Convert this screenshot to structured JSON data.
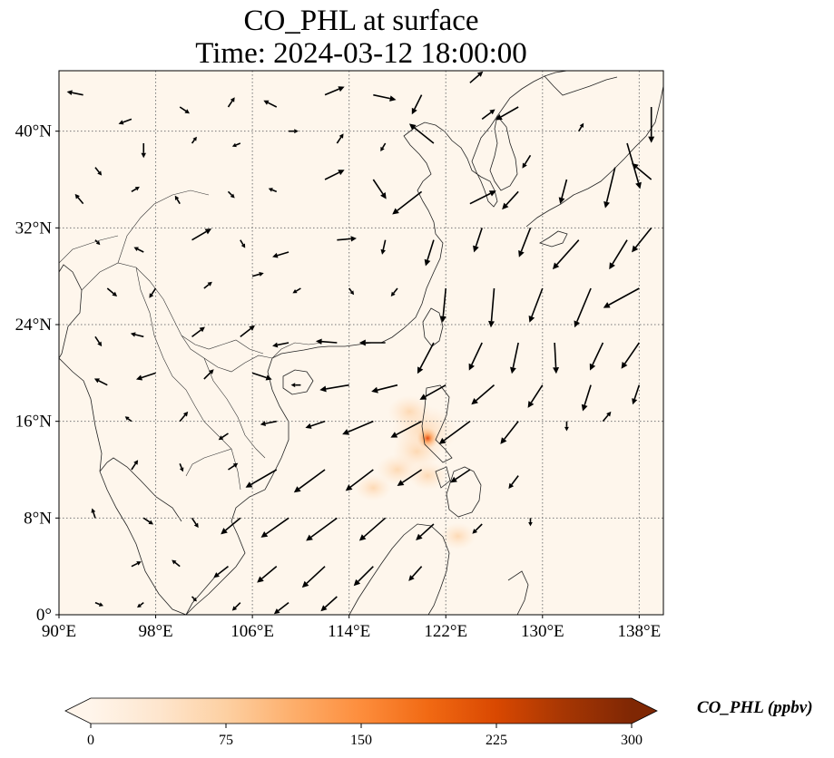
{
  "title": {
    "line1": "CO_PHL at surface",
    "line2": "Time: 2024-03-12 18:00:00"
  },
  "map": {
    "variable": "CO_PHL",
    "lon_range": [
      90,
      140
    ],
    "lat_range": [
      0,
      45
    ],
    "lon_ticks": [
      {
        "value": 90,
        "label": "90°E"
      },
      {
        "value": 98,
        "label": "98°E"
      },
      {
        "value": 106,
        "label": "106°E"
      },
      {
        "value": 114,
        "label": "114°E"
      },
      {
        "value": 122,
        "label": "122°E"
      },
      {
        "value": 130,
        "label": "130°E"
      },
      {
        "value": 138,
        "label": "138°E"
      }
    ],
    "lat_ticks": [
      {
        "value": 0,
        "label": "0°"
      },
      {
        "value": 8,
        "label": "8°N"
      },
      {
        "value": 16,
        "label": "16°N"
      },
      {
        "value": 24,
        "label": "24°N"
      },
      {
        "value": 32,
        "label": "32°N"
      },
      {
        "value": 40,
        "label": "40°N"
      }
    ],
    "gridlines": true,
    "background_color": "#fef6ec",
    "hotspot": {
      "lon": 120.5,
      "lat": 14.6,
      "value": 150
    },
    "plume": [
      {
        "lon": 120.2,
        "lat": 15.2,
        "value": 45
      },
      {
        "lon": 119.6,
        "lat": 13.5,
        "value": 25
      },
      {
        "lon": 118.0,
        "lat": 12.0,
        "value": 18
      },
      {
        "lon": 116.0,
        "lat": 10.5,
        "value": 12
      },
      {
        "lon": 120.5,
        "lat": 11.5,
        "value": 15
      },
      {
        "lon": 123.0,
        "lat": 6.5,
        "value": 12
      },
      {
        "lon": 119.0,
        "lat": 16.8,
        "value": 20
      }
    ]
  },
  "wind_field": [
    [
      92,
      43,
      -1,
      0.2
    ],
    [
      96,
      41,
      -0.8,
      -0.3
    ],
    [
      100,
      42,
      0.6,
      -0.4
    ],
    [
      104,
      42,
      0.4,
      0.6
    ],
    [
      108,
      42,
      -0.8,
      0.4
    ],
    [
      112,
      43,
      1.2,
      0.5
    ],
    [
      116,
      43,
      1.4,
      -0.3
    ],
    [
      120,
      43,
      -0.6,
      -1.2
    ],
    [
      124,
      44,
      0.8,
      0.7
    ],
    [
      128,
      42,
      -1.4,
      -0.8
    ],
    [
      93,
      37,
      0.4,
      -0.5
    ],
    [
      97,
      39,
      0,
      -0.9
    ],
    [
      101,
      39,
      0.3,
      0.4
    ],
    [
      105,
      39,
      -0.5,
      -0.2
    ],
    [
      109,
      40,
      0.6,
      0
    ],
    [
      113,
      39,
      0.4,
      0.6
    ],
    [
      117,
      39,
      -0.3,
      -0.5
    ],
    [
      121,
      39,
      -1.5,
      1.2
    ],
    [
      125,
      41,
      0.8,
      0.6
    ],
    [
      129,
      38,
      -0.5,
      -0.8
    ],
    [
      133,
      40,
      0.3,
      0.5
    ],
    [
      137,
      39,
      0.8,
      -2.8
    ],
    [
      139,
      42,
      0,
      -2.2
    ],
    [
      92,
      34,
      -0.5,
      0.6
    ],
    [
      96,
      35,
      0.5,
      0.3
    ],
    [
      100,
      34,
      -0.3,
      0.5
    ],
    [
      104,
      35,
      0.4,
      -0.4
    ],
    [
      108,
      35,
      -0.5,
      0.2
    ],
    [
      112,
      36,
      1.2,
      0.6
    ],
    [
      116,
      36,
      0.8,
      -1.2
    ],
    [
      120,
      35,
      -1.8,
      -1.4
    ],
    [
      124,
      34,
      1.6,
      0.8
    ],
    [
      128,
      35,
      -1,
      -1.1
    ],
    [
      132,
      36,
      -0.4,
      -1.5
    ],
    [
      136,
      37,
      -0.6,
      -2.5
    ],
    [
      139,
      36,
      -1.2,
      1
    ],
    [
      93,
      31,
      0.3,
      -0.3
    ],
    [
      97,
      30,
      -0.6,
      0.3
    ],
    [
      101,
      31,
      1.2,
      0.7
    ],
    [
      105,
      31,
      0.3,
      -0.5
    ],
    [
      109,
      30,
      -1,
      -0.3
    ],
    [
      113,
      31,
      1.2,
      0.1
    ],
    [
      117,
      31,
      -0.2,
      -0.9
    ],
    [
      121,
      31,
      -0.5,
      -1.6
    ],
    [
      125,
      32,
      -0.5,
      -1.5
    ],
    [
      129,
      32,
      -0.7,
      -1.8
    ],
    [
      133,
      31,
      -1.6,
      -1.8
    ],
    [
      137,
      31,
      -1.1,
      -1.8
    ],
    [
      139,
      32,
      -1.2,
      -1.5
    ],
    [
      94,
      27,
      0.6,
      -0.5
    ],
    [
      98,
      27,
      -0.4,
      -0.6
    ],
    [
      102,
      27,
      0.5,
      0.4
    ],
    [
      106,
      28,
      0.7,
      0.2
    ],
    [
      110,
      27,
      -0.5,
      -0.3
    ],
    [
      114,
      27,
      0.3,
      -0.4
    ],
    [
      118,
      27,
      -0.4,
      -0.5
    ],
    [
      122,
      27,
      -0.2,
      -2.1
    ],
    [
      126,
      27,
      -0.2,
      -2.4
    ],
    [
      130,
      27,
      -0.8,
      -2.1
    ],
    [
      134,
      27,
      -1,
      -2.4
    ],
    [
      138,
      27,
      -2.2,
      -1.2
    ],
    [
      93,
      23,
      0.4,
      -0.6
    ],
    [
      97,
      23,
      -0.8,
      0.2
    ],
    [
      101,
      23,
      0.8,
      0.6
    ],
    [
      105,
      23,
      0.9,
      0.7
    ],
    [
      109,
      22.5,
      -1,
      -0.2
    ],
    [
      113,
      22.5,
      -1.3,
      0.1
    ],
    [
      117,
      22.5,
      -1.6,
      0
    ],
    [
      121,
      22.5,
      -1,
      -1.9
    ],
    [
      125,
      22.5,
      -0.8,
      -1.7
    ],
    [
      128,
      22.5,
      -0.4,
      -1.9
    ],
    [
      131,
      22.5,
      0.1,
      -1.9
    ],
    [
      135,
      22.5,
      -0.8,
      -1.7
    ],
    [
      138,
      22.5,
      -1.1,
      -1.6
    ],
    [
      94,
      19,
      -0.8,
      0.4
    ],
    [
      98,
      20,
      -1.2,
      -0.4
    ],
    [
      102,
      19.5,
      0.6,
      0.6
    ],
    [
      106,
      20,
      1.2,
      -0.4
    ],
    [
      110,
      19,
      -0.6,
      0
    ],
    [
      114,
      19,
      -1.8,
      -0.3
    ],
    [
      118,
      19,
      -1.6,
      -0.4
    ],
    [
      122,
      19,
      -1.6,
      -0.9
    ],
    [
      126,
      19,
      -1.4,
      -1.2
    ],
    [
      130,
      19,
      -0.9,
      -1.4
    ],
    [
      134,
      19,
      -0.5,
      -1.6
    ],
    [
      138,
      19,
      -0.4,
      -1.2
    ],
    [
      96,
      16,
      -0.4,
      0.3
    ],
    [
      100,
      16,
      0.5,
      0.6
    ],
    [
      104,
      15,
      -0.6,
      -0.4
    ],
    [
      108,
      16,
      -1,
      -0.2
    ],
    [
      112,
      16,
      -1.2,
      -0.4
    ],
    [
      116,
      16,
      -1.9,
      -0.8
    ],
    [
      120,
      16,
      -1.9,
      -1
    ],
    [
      124,
      16,
      -1.9,
      -1.4
    ],
    [
      128,
      16,
      -1.1,
      -1.4
    ],
    [
      132,
      16,
      0,
      -0.6
    ],
    [
      135,
      16,
      0.5,
      0.6
    ],
    [
      96,
      12,
      0.4,
      0.6
    ],
    [
      100,
      12.5,
      0.2,
      -0.5
    ],
    [
      104,
      12,
      0.6,
      0.4
    ],
    [
      108,
      12,
      -1.9,
      -1.1
    ],
    [
      112,
      12,
      -1.9,
      -1.4
    ],
    [
      116,
      12,
      -1.7,
      -1.3
    ],
    [
      120,
      12,
      -1.5,
      -1
    ],
    [
      124,
      12,
      -1.2,
      -0.8
    ],
    [
      128,
      11.5,
      -0.6,
      -0.8
    ],
    [
      93,
      8,
      -0.2,
      0.6
    ],
    [
      97,
      8,
      0.6,
      -0.4
    ],
    [
      101,
      8,
      0.4,
      -0.6
    ],
    [
      105,
      8,
      -1.2,
      -1
    ],
    [
      109,
      8,
      -1.7,
      -1.2
    ],
    [
      113,
      8,
      -1.9,
      -1.4
    ],
    [
      117,
      8,
      -1.6,
      -1.4
    ],
    [
      121,
      7.5,
      -1.1,
      -1
    ],
    [
      125,
      7.5,
      -0.6,
      -0.6
    ],
    [
      129,
      8,
      0,
      -0.5
    ],
    [
      96,
      4,
      0.6,
      0.3
    ],
    [
      100,
      4,
      -0.5,
      0.4
    ],
    [
      104,
      4,
      -0.9,
      -0.7
    ],
    [
      108,
      4,
      -1.2,
      -1
    ],
    [
      112,
      4,
      -1.4,
      -1.3
    ],
    [
      116,
      4,
      -1.2,
      -1.2
    ],
    [
      120,
      4,
      -0.8,
      -0.9
    ],
    [
      93,
      1,
      0.5,
      -0.2
    ],
    [
      97,
      1,
      -0.4,
      -0.3
    ],
    [
      101,
      1.5,
      0.3,
      -0.3
    ],
    [
      105,
      1,
      -0.5,
      -0.5
    ],
    [
      109,
      1,
      -0.9,
      -0.7
    ],
    [
      113,
      1.5,
      -1,
      -0.9
    ]
  ],
  "colorbar": {
    "label": "CO_PHL (ppbv)",
    "min": 0,
    "max": 300,
    "ticks": [
      "0",
      "75",
      "150",
      "225",
      "300"
    ],
    "colors": [
      "#fff5eb",
      "#fee6ce",
      "#fdd0a2",
      "#fdae6b",
      "#fd8d3c",
      "#f16913",
      "#d94801",
      "#a63603",
      "#7f2704"
    ],
    "extend": "both"
  }
}
